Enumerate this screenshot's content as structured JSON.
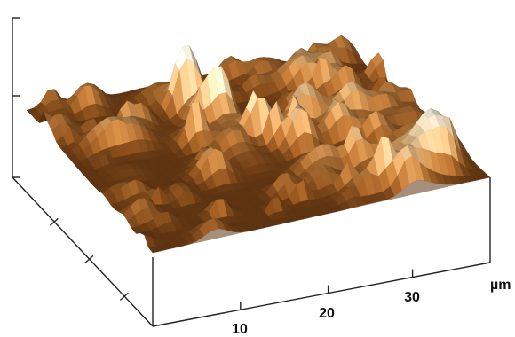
{
  "figure": {
    "kind": "3D surface topography (AFM height map)",
    "colormap": [
      "#2a1406",
      "#5a2e0c",
      "#8a4f1c",
      "#b8783a",
      "#d9a96e",
      "#efd7b0",
      "#fbf3e4"
    ],
    "x_axis": {
      "unit_label": "µm",
      "tick_labels": [
        "10",
        "20",
        "30"
      ]
    },
    "left_axis": {
      "tick_count": 4
    },
    "vertical_axis": {
      "tick_count": 3
    }
  }
}
